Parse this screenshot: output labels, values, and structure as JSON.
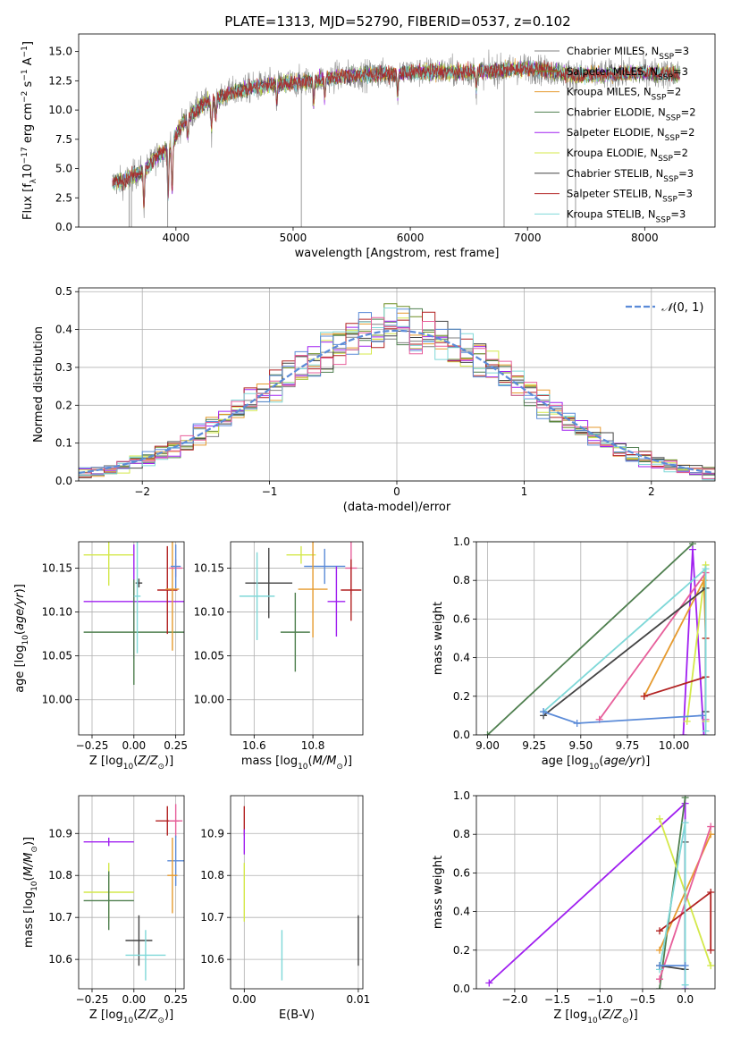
{
  "figure": {
    "title": "PLATE=1313, MJD=52790, FIBERID=0537, z=0.102"
  },
  "chart_data": [
    {
      "id": "spectrum",
      "type": "line",
      "title": "PLATE=1313, MJD=52790, FIBERID=0537, z=0.102",
      "xlabel": "wavelength [Angstrom, rest frame]",
      "ylabel": "Flux [f_λ10^-17 erg cm^-2 s^-1 A^-1]",
      "xlim": [
        3170,
        8600
      ],
      "ylim": [
        0,
        16.5
      ],
      "xticks": [
        4000,
        5000,
        6000,
        7000,
        8000
      ],
      "yticks": [
        0.0,
        2.5,
        5.0,
        7.5,
        10.0,
        12.5,
        15.0
      ],
      "grid": false,
      "legend_position": "upper right",
      "series": [
        {
          "name": "Chabrier MILES, N_SSP=3",
          "color": "#808080"
        },
        {
          "name": "Salpeter MILES, N_SSP=3",
          "color": "#6b8e23"
        },
        {
          "name": "Kroupa MILES, N_SSP=2",
          "color": "#e69a2e"
        },
        {
          "name": "Chabrier ELODIE, N_SSP=2",
          "color": "#4f7f4f"
        },
        {
          "name": "Salpeter ELODIE, N_SSP=2",
          "color": "#a020f0"
        },
        {
          "name": "Kroupa ELODIE, N_SSP=2",
          "color": "#d4e84a"
        },
        {
          "name": "Chabrier STELIB, N_SSP=3",
          "color": "#444444"
        },
        {
          "name": "Salpeter STELIB, N_SSP=3",
          "color": "#b22222"
        },
        {
          "name": "Kroupa STELIB, N_SSP=3",
          "color": "#7fd8d8"
        }
      ],
      "continuum": {
        "x": [
          3460,
          3550,
          3650,
          3750,
          3850,
          3950,
          4050,
          4150,
          4250,
          4400,
          4550,
          4700,
          4850,
          5000,
          5200,
          5400,
          5600,
          5800,
          6000,
          6200,
          6400,
          6600,
          6800,
          7000,
          7200,
          7400,
          7600,
          7800,
          8000,
          8200,
          8300
        ],
        "y": [
          3.8,
          3.9,
          4.5,
          5.0,
          6.2,
          6.8,
          8.8,
          9.8,
          10.6,
          11.2,
          11.7,
          12.0,
          12.2,
          12.3,
          12.6,
          12.9,
          13.0,
          13.1,
          13.2,
          13.3,
          13.2,
          13.3,
          13.4,
          13.6,
          13.3,
          13.0,
          13.0,
          13.1,
          13.2,
          13.1,
          13.0
        ]
      }
    },
    {
      "id": "residuals",
      "type": "line",
      "xlabel": "(data-model)/error",
      "ylabel": "Normed distribution",
      "xlim": [
        -2.5,
        2.5
      ],
      "ylim": [
        0,
        0.51
      ],
      "xticks": [
        -2,
        -1,
        0,
        1,
        2
      ],
      "yticks": [
        0.0,
        0.1,
        0.2,
        0.3,
        0.4,
        0.5
      ],
      "grid": true,
      "legend_position": "upper right",
      "legend": "N(0,1)",
      "gaussian_color": "#5b8bd8"
    },
    {
      "id": "age-vs-Z",
      "type": "scatter",
      "xlabel": "Z [log10(Z/Z⊙)]",
      "ylabel": "age [log10(age/yr)]",
      "xlim": [
        -0.33,
        0.3
      ],
      "ylim": [
        9.96,
        10.18
      ],
      "xticks": [
        -0.25,
        0.0,
        0.25
      ],
      "yticks": [
        10.0,
        10.05,
        10.1,
        10.15
      ],
      "grid": true,
      "points": [
        {
          "color": "#d4e84a",
          "x": -0.15,
          "y": 10.165,
          "xerr": 0.15,
          "yerr": 0.035
        },
        {
          "color": "#a020f0",
          "x": 0.0,
          "y": 10.112,
          "xerr": 0.3,
          "yerr": 0.065
        },
        {
          "color": "#4f7f4f",
          "x": 0.0,
          "y": 10.077,
          "xerr": 0.3,
          "yerr": 0.06
        },
        {
          "color": "#444444",
          "x": 0.03,
          "y": 10.133,
          "xerr": 0.02,
          "yerr": 0.005
        },
        {
          "color": "#7fd8d8",
          "x": 0.02,
          "y": 10.118,
          "xerr": 0.02,
          "yerr": 0.065
        },
        {
          "color": "#b22222",
          "x": 0.2,
          "y": 10.125,
          "xerr": 0.06,
          "yerr": 0.05
        },
        {
          "color": "#e69a2e",
          "x": 0.23,
          "y": 10.126,
          "xerr": 0.04,
          "yerr": 0.07
        },
        {
          "color": "#e75f9b",
          "x": 0.25,
          "y": 10.15,
          "xerr": 0.04,
          "yerr": 0.01
        },
        {
          "color": "#5b8bd8",
          "x": 0.25,
          "y": 10.152,
          "xerr": 0.03,
          "yerr": 0.025
        }
      ]
    },
    {
      "id": "age-vs-mass",
      "type": "scatter",
      "xlabel": "mass [log10(M/M⊙)]",
      "xlim": [
        10.52,
        10.97
      ],
      "ylim": [
        9.96,
        10.18
      ],
      "xticks": [
        10.6,
        10.8
      ],
      "yticks": [
        10.0,
        10.05,
        10.1,
        10.15
      ],
      "grid": true,
      "points": [
        {
          "color": "#444444",
          "x": 10.65,
          "y": 10.133,
          "xerr": 0.08,
          "yerr": 0.04
        },
        {
          "color": "#7fd8d8",
          "x": 10.61,
          "y": 10.118,
          "xerr": 0.06,
          "yerr": 0.05
        },
        {
          "color": "#d4e84a",
          "x": 10.76,
          "y": 10.165,
          "xerr": 0.05,
          "yerr": 0.01
        },
        {
          "color": "#4f7f4f",
          "x": 10.74,
          "y": 10.077,
          "xerr": 0.05,
          "yerr": 0.045
        },
        {
          "color": "#5b8bd8",
          "x": 10.84,
          "y": 10.152,
          "xerr": 0.07,
          "yerr": 0.02
        },
        {
          "color": "#e69a2e",
          "x": 10.8,
          "y": 10.126,
          "xerr": 0.05,
          "yerr": 0.055
        },
        {
          "color": "#a020f0",
          "x": 10.88,
          "y": 10.112,
          "xerr": 0.03,
          "yerr": 0.04
        },
        {
          "color": "#e75f9b",
          "x": 10.93,
          "y": 10.15,
          "xerr": 0.02,
          "yerr": 0.03
        },
        {
          "color": "#b22222",
          "x": 10.93,
          "y": 10.125,
          "xerr": 0.035,
          "yerr": 0.035
        }
      ]
    },
    {
      "id": "weight-vs-age",
      "type": "line",
      "xlabel": "age [log10(age/yr)]",
      "ylabel": "mass weight",
      "xlim": [
        8.94,
        10.22
      ],
      "ylim": [
        0,
        1.0
      ],
      "xticks": [
        9.0,
        9.25,
        9.5,
        9.75,
        10.0
      ],
      "yticks": [
        0.0,
        0.2,
        0.4,
        0.6,
        0.8,
        1.0
      ],
      "grid": true,
      "series": [
        {
          "color": "#4f7f4f",
          "x": [
            9.0,
            10.1
          ],
          "y": [
            0.0,
            0.99
          ]
        },
        {
          "color": "#a020f0",
          "x": [
            10.05,
            10.1,
            10.16
          ],
          "y": [
            0.0,
            0.96,
            0.0
          ]
        },
        {
          "color": "#d4e84a",
          "x": [
            10.07,
            10.17,
            10.17
          ],
          "y": [
            0.07,
            0.88,
            0.07
          ]
        },
        {
          "color": "#e69a2e",
          "x": [
            9.84,
            10.16,
            10.17
          ],
          "y": [
            0.2,
            0.8,
            0.5
          ]
        },
        {
          "color": "#b22222",
          "x": [
            9.84,
            10.17,
            10.17
          ],
          "y": [
            0.2,
            0.3,
            0.5
          ]
        },
        {
          "color": "#e75f9b",
          "x": [
            9.6,
            10.17,
            10.17
          ],
          "y": [
            0.08,
            0.84,
            0.08
          ]
        },
        {
          "color": "#444444",
          "x": [
            9.3,
            10.17,
            10.17
          ],
          "y": [
            0.1,
            0.76,
            0.12
          ]
        },
        {
          "color": "#7fd8d8",
          "x": [
            9.3,
            10.17,
            10.17
          ],
          "y": [
            0.12,
            0.86,
            0.02
          ]
        },
        {
          "color": "#5b8bd8",
          "x": [
            9.3,
            9.48,
            10.15
          ],
          "y": [
            0.12,
            0.06,
            0.1
          ]
        }
      ]
    },
    {
      "id": "mass-vs-Z",
      "type": "scatter",
      "xlabel": "Z [log10(Z/Z⊙)]",
      "ylabel": "mass [log10(M/M⊙)]",
      "xlim": [
        -0.33,
        0.3
      ],
      "ylim": [
        10.53,
        10.99
      ],
      "xticks": [
        -0.25,
        0.0,
        0.25
      ],
      "yticks": [
        10.6,
        10.7,
        10.8,
        10.9
      ],
      "grid": true,
      "points": [
        {
          "color": "#a020f0",
          "x": -0.15,
          "y": 10.88,
          "xerr": 0.15,
          "yerr": 0.01
        },
        {
          "color": "#d4e84a",
          "x": -0.15,
          "y": 10.76,
          "xerr": 0.15,
          "yerr": 0.07
        },
        {
          "color": "#4f7f4f",
          "x": -0.15,
          "y": 10.74,
          "xerr": 0.15,
          "yerr": 0.07
        },
        {
          "color": "#444444",
          "x": 0.03,
          "y": 10.645,
          "xerr": 0.08,
          "yerr": 0.06
        },
        {
          "color": "#7fd8d8",
          "x": 0.07,
          "y": 10.61,
          "xerr": 0.12,
          "yerr": 0.06
        },
        {
          "color": "#b22222",
          "x": 0.2,
          "y": 10.93,
          "xerr": 0.07,
          "yerr": 0.035
        },
        {
          "color": "#e75f9b",
          "x": 0.25,
          "y": 10.93,
          "xerr": 0.04,
          "yerr": 0.04
        },
        {
          "color": "#5b8bd8",
          "x": 0.25,
          "y": 10.835,
          "xerr": 0.05,
          "yerr": 0.06
        },
        {
          "color": "#e69a2e",
          "x": 0.23,
          "y": 10.8,
          "xerr": 0.03,
          "yerr": 0.09
        }
      ]
    },
    {
      "id": "mass-vs-EBV",
      "type": "scatter",
      "xlabel": "E(B-V)",
      "xlim": [
        -0.0012,
        0.0104
      ],
      "ylim": [
        10.53,
        10.99
      ],
      "xticks": [
        0.0,
        0.01
      ],
      "yticks": [
        10.6,
        10.7,
        10.8,
        10.9
      ],
      "grid": true,
      "points": [
        {
          "color": "#b22222",
          "x": 0.0,
          "y": 10.93,
          "yerr": 0.035
        },
        {
          "color": "#a020f0",
          "x": 0.0,
          "y": 10.88,
          "yerr": 0.03
        },
        {
          "color": "#d4e84a",
          "x": 0.0,
          "y": 10.76,
          "yerr": 0.07
        },
        {
          "color": "#7fd8d8",
          "x": 0.0033,
          "y": 10.61,
          "yerr": 0.06
        },
        {
          "color": "#444444",
          "x": 0.01,
          "y": 10.645,
          "yerr": 0.06
        }
      ]
    },
    {
      "id": "weight-vs-Z",
      "type": "line",
      "xlabel": "Z [log10(Z/Z⊙)]",
      "ylabel": "mass weight",
      "xlim": [
        -2.45,
        0.35
      ],
      "ylim": [
        0,
        1.0
      ],
      "xticks": [
        -2.0,
        -1.5,
        -1.0,
        -0.5,
        0.0
      ],
      "yticks": [
        0.0,
        0.2,
        0.4,
        0.6,
        0.8,
        1.0
      ],
      "grid": true,
      "series": [
        {
          "color": "#a020f0",
          "x": [
            -2.3,
            0.0,
            0.0
          ],
          "y": [
            0.03,
            0.96,
            0.0
          ]
        },
        {
          "color": "#4f7f4f",
          "x": [
            -0.3,
            0.0
          ],
          "y": [
            0.0,
            0.99
          ]
        },
        {
          "color": "#d4e84a",
          "x": [
            -0.3,
            0.3
          ],
          "y": [
            0.88,
            0.12
          ]
        },
        {
          "color": "#e69a2e",
          "x": [
            -0.3,
            0.3
          ],
          "y": [
            0.2,
            0.8
          ]
        },
        {
          "color": "#e75f9b",
          "x": [
            -0.3,
            0.3
          ],
          "y": [
            0.05,
            0.84
          ]
        },
        {
          "color": "#b22222",
          "x": [
            -0.3,
            0.3,
            0.3
          ],
          "y": [
            0.3,
            0.5,
            0.2
          ]
        },
        {
          "color": "#444444",
          "x": [
            -0.3,
            0.0,
            0.0
          ],
          "y": [
            0.12,
            0.1,
            0.76
          ]
        },
        {
          "color": "#7fd8d8",
          "x": [
            -0.3,
            0.0,
            0.0
          ],
          "y": [
            0.1,
            0.86,
            0.02
          ]
        },
        {
          "color": "#5b8bd8",
          "x": [
            -0.3,
            0.0
          ],
          "y": [
            0.12,
            0.12
          ]
        }
      ]
    }
  ]
}
